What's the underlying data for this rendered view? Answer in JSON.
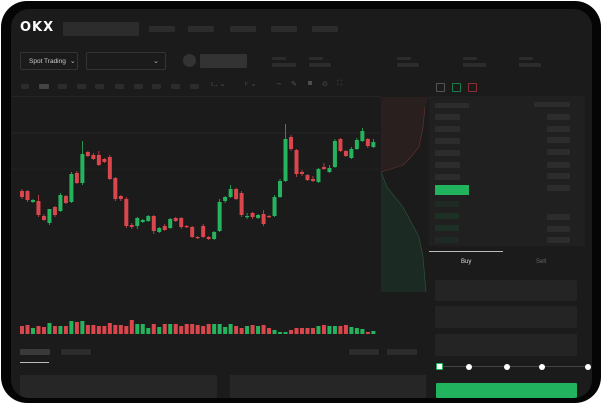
{
  "header": {
    "logo": "OKX",
    "nav_items": 5
  },
  "market_bar": {
    "mode_select": "Spot Trading",
    "pair_select": ""
  },
  "order_form": {
    "tabs": [
      "Buy",
      "Sell"
    ],
    "active_tab": "Buy",
    "slider_percent": 0,
    "submit_color": "#22b35e"
  },
  "colors": {
    "up": "#26b35e",
    "down": "#d9464b",
    "background": "#1b1b1b"
  },
  "chart_data": {
    "type": "candlestick",
    "candles": [
      [
        68,
        62,
        70,
        60
      ],
      [
        68,
        59,
        69,
        57
      ],
      [
        57,
        59,
        60,
        56
      ],
      [
        58,
        44,
        64,
        42
      ],
      [
        43,
        39,
        45,
        38
      ],
      [
        36,
        50,
        50,
        34
      ],
      [
        52,
        44,
        53,
        42
      ],
      [
        48,
        64,
        66,
        47
      ],
      [
        63,
        56,
        64,
        55
      ],
      [
        57,
        85,
        87,
        56
      ],
      [
        86,
        76,
        88,
        75
      ],
      [
        76,
        105,
        118,
        74
      ],
      [
        107,
        103,
        108,
        102
      ],
      [
        104,
        100,
        106,
        99
      ],
      [
        104,
        94,
        108,
        93
      ],
      [
        100,
        97,
        101,
        96
      ],
      [
        102,
        80,
        104,
        79
      ],
      [
        81,
        60,
        82,
        58
      ],
      [
        63,
        60,
        64,
        58
      ],
      [
        60,
        33,
        62,
        31
      ],
      [
        34,
        32,
        36,
        30
      ],
      [
        33,
        41,
        42,
        30
      ],
      [
        37,
        39,
        40,
        36
      ],
      [
        38,
        43,
        44,
        37
      ],
      [
        43,
        28,
        44,
        25
      ],
      [
        27,
        31,
        32,
        26
      ],
      [
        33,
        29,
        35,
        28
      ],
      [
        31,
        40,
        41,
        30
      ],
      [
        41,
        38,
        42,
        37
      ],
      [
        41,
        32,
        42,
        30
      ],
      [
        33,
        32,
        34,
        31
      ],
      [
        32,
        22,
        33,
        21
      ],
      [
        22,
        21,
        23,
        20
      ],
      [
        33,
        22,
        35,
        21
      ],
      [
        22,
        20,
        23,
        19
      ],
      [
        20,
        27,
        28,
        19
      ],
      [
        28,
        57,
        60,
        27
      ],
      [
        58,
        62,
        63,
        56
      ],
      [
        62,
        70,
        74,
        61
      ],
      [
        70,
        60,
        71,
        59
      ],
      [
        66,
        44,
        68,
        42
      ],
      [
        42,
        43,
        46,
        40
      ],
      [
        46,
        42,
        47,
        40
      ],
      [
        41,
        44,
        45,
        40
      ],
      [
        45,
        35,
        49,
        33
      ],
      [
        43,
        42,
        44,
        41
      ],
      [
        43,
        62,
        64,
        42
      ],
      [
        62,
        78,
        80,
        61
      ],
      [
        78,
        120,
        135,
        77
      ],
      [
        122,
        110,
        124,
        108
      ],
      [
        109,
        85,
        110,
        82
      ],
      [
        87,
        85,
        89,
        83
      ],
      [
        84,
        79,
        85,
        78
      ],
      [
        80,
        78,
        83,
        77
      ],
      [
        77,
        90,
        91,
        76
      ],
      [
        92,
        90,
        96,
        89
      ],
      [
        87,
        91,
        94,
        86
      ],
      [
        92,
        118,
        120,
        91
      ],
      [
        120,
        108,
        121,
        107
      ],
      [
        108,
        103,
        109,
        102
      ],
      [
        101,
        110,
        112,
        100
      ],
      [
        110,
        119,
        121,
        109
      ],
      [
        118,
        128,
        131,
        117
      ],
      [
        120,
        113,
        121,
        111
      ],
      [
        112,
        117,
        120,
        111
      ]
    ],
    "volume": [
      8,
      9,
      6,
      8,
      7,
      11,
      8,
      8,
      8,
      13,
      12,
      13,
      9,
      9,
      8,
      8,
      11,
      9,
      9,
      8,
      14,
      10,
      10,
      6,
      10,
      7,
      10,
      10,
      10,
      8,
      10,
      10,
      9,
      8,
      10,
      10,
      10,
      7,
      10,
      8,
      6,
      8,
      9,
      8,
      9,
      6,
      4,
      2,
      2,
      4,
      6,
      6,
      6,
      6,
      8,
      9,
      8,
      8,
      8,
      9,
      7,
      6,
      5,
      2,
      3
    ],
    "series": [
      "price",
      "volume"
    ]
  }
}
